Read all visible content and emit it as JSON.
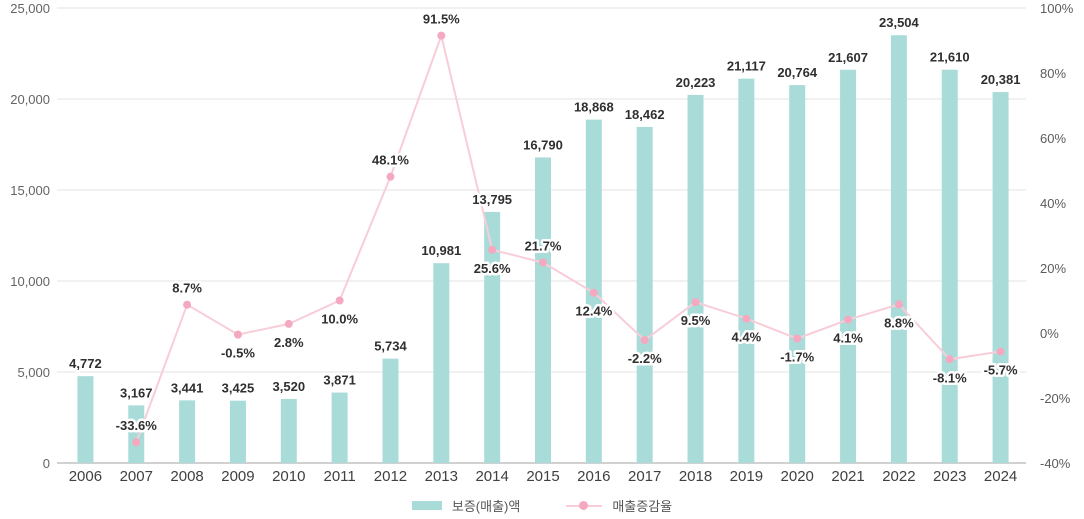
{
  "chart_data": {
    "type": "bar",
    "title": "",
    "categories": [
      "2006",
      "2007",
      "2008",
      "2009",
      "2010",
      "2011",
      "2012",
      "2013",
      "2014",
      "2015",
      "2016",
      "2017",
      "2018",
      "2019",
      "2020",
      "2021",
      "2022",
      "2023",
      "2024"
    ],
    "series": [
      {
        "name": "보증(매출)액",
        "kind": "bar",
        "axis": "left",
        "values": [
          4772,
          3167,
          3441,
          3425,
          3520,
          3871,
          5734,
          10981,
          13795,
          16790,
          18868,
          18462,
          20223,
          21117,
          20764,
          21607,
          23504,
          21610,
          20381
        ],
        "value_labels": [
          "4,772",
          "3,167",
          "3,441",
          "3,425",
          "3,520",
          "3,871",
          "5,734",
          "10,981",
          "13,795",
          "16,790",
          "18,868",
          "18,462",
          "20,223",
          "21,117",
          "20,764",
          "21,607",
          "23,504",
          "21,610",
          "20,381"
        ]
      },
      {
        "name": "매출증감율",
        "kind": "line",
        "axis": "right",
        "values": [
          null,
          -33.6,
          8.7,
          -0.5,
          2.8,
          10.0,
          48.1,
          91.5,
          25.6,
          21.7,
          12.4,
          -2.2,
          9.5,
          4.4,
          -1.7,
          4.1,
          8.8,
          -8.1,
          -5.7
        ],
        "value_labels": [
          null,
          "-33.6%",
          "8.7%",
          "-0.5%",
          "2.8%",
          "10.0%",
          "48.1%",
          "91.5%",
          "25.6%",
          "21.7%",
          "12.4%",
          "-2.2%",
          "9.5%",
          "4.4%",
          "-1.7%",
          "4.1%",
          "8.8%",
          "-8.1%",
          "-5.7%"
        ],
        "label_side": [
          null,
          "above",
          "above",
          "below",
          "below",
          "below",
          "above",
          "above",
          "below",
          "above",
          "below",
          "below",
          "below",
          "below",
          "below",
          "below",
          "below",
          "below",
          "below"
        ]
      }
    ],
    "left_axis": {
      "min": 0,
      "max": 25000,
      "ticks": [
        {
          "value": 0,
          "label": "0"
        },
        {
          "value": 5000,
          "label": "5,000"
        },
        {
          "value": 10000,
          "label": "10,000"
        },
        {
          "value": 15000,
          "label": "15,000"
        },
        {
          "value": 20000,
          "label": "20,000"
        },
        {
          "value": 25000,
          "label": "25,000"
        }
      ]
    },
    "right_axis": {
      "min": -40,
      "max": 100,
      "ticks": [
        {
          "value": -40,
          "label": "-40%"
        },
        {
          "value": -20,
          "label": "-20%"
        },
        {
          "value": 0,
          "label": "0%"
        },
        {
          "value": 20,
          "label": "20%"
        },
        {
          "value": 40,
          "label": "40%"
        },
        {
          "value": 60,
          "label": "60%"
        },
        {
          "value": 80,
          "label": "80%"
        },
        {
          "value": 100,
          "label": "100%"
        }
      ]
    },
    "grid": true,
    "legend_position": "bottom",
    "colors": {
      "bar": "#a9dcd9",
      "line": "#f8cdd8",
      "marker": "#f4a9c0",
      "grid": "#e3e3e3",
      "zero_line": "#c2c2c2",
      "data_label": "#2f2f2f",
      "tick_label": "#646464",
      "year_label": "#404040"
    }
  }
}
